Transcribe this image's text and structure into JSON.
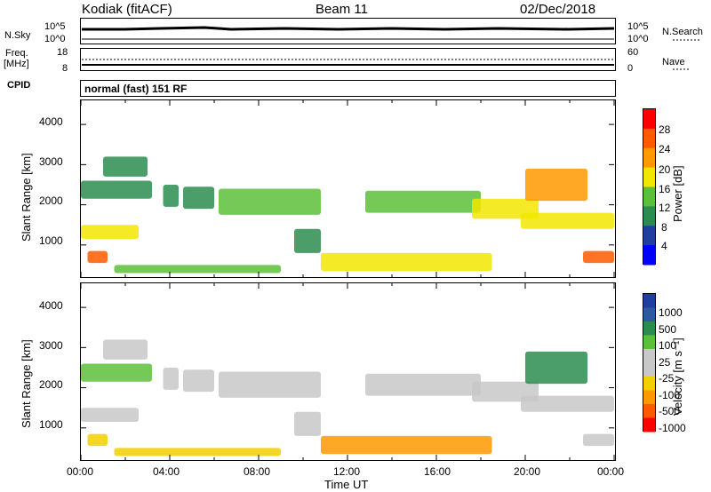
{
  "header": {
    "station": "Kodiak (fitACF)",
    "beam": "Beam 11",
    "date": "02/Dec/2018"
  },
  "noise_panel": {
    "left_label": "N.Sky",
    "left_top": "10^5",
    "left_bottom": "10^0",
    "right_top": "10^5",
    "right_bottom": "10^0",
    "right_label": "N.Search"
  },
  "freq_panel": {
    "label_line1": "Freq.",
    "label_line2": "[MHz]",
    "left_top": "18",
    "left_bottom": "8",
    "right_top": "60",
    "right_bottom": "0",
    "right_label": "Nave"
  },
  "cpid_panel": {
    "label": "CPID",
    "text": "normal (fast) 151 RF"
  },
  "y_axis": {
    "label": "Slant Range [km]",
    "ticks": [
      "1000",
      "2000",
      "3000",
      "4000"
    ]
  },
  "x_axis": {
    "label": "Time UT",
    "ticks": [
      "00:00",
      "04:00",
      "08:00",
      "12:00",
      "16:00",
      "20:00",
      "00:00"
    ]
  },
  "colors": {
    "power_scale": [
      "#0000ff",
      "#1f3f9f",
      "#2c8c50",
      "#5cbf3a",
      "#f2e600",
      "#ff9900",
      "#ff5a00",
      "#ff0000"
    ],
    "velocity_scale": [
      "#ff0000",
      "#ff5a00",
      "#ff9900",
      "#f2d000",
      "#c8c8c8",
      "#c8c8c8",
      "#5cbf3a",
      "#2c8c50",
      "#2c5aa0",
      "#1f3f9f"
    ]
  },
  "chart_data": [
    {
      "type": "heatmap",
      "title": "",
      "xlabel": "Time UT",
      "ylabel": "Slant Range [km]",
      "xlim": [
        "00:00",
        "24:00"
      ],
      "ylim": [
        200,
        4600
      ],
      "colorbar": {
        "label": "Power [dB]",
        "ticks": [
          "4",
          "8",
          "12",
          "16",
          "20",
          "24",
          "28"
        ]
      },
      "bands": [
        {
          "t": [
            0.0,
            2.6
          ],
          "range": [
            1150,
            1500
          ],
          "value": 20
        },
        {
          "t": [
            0.0,
            3.2
          ],
          "range": [
            2150,
            2600
          ],
          "value": 12
        },
        {
          "t": [
            0.3,
            1.2
          ],
          "range": [
            550,
            850
          ],
          "value": 26
        },
        {
          "t": [
            1.0,
            3.0
          ],
          "range": [
            2700,
            3200
          ],
          "value": 10
        },
        {
          "t": [
            1.5,
            9.0
          ],
          "range": [
            300,
            500
          ],
          "value": 16
        },
        {
          "t": [
            3.7,
            4.4
          ],
          "range": [
            1950,
            2500
          ],
          "value": 12
        },
        {
          "t": [
            4.6,
            6.0
          ],
          "range": [
            1900,
            2450
          ],
          "value": 12
        },
        {
          "t": [
            6.2,
            10.8
          ],
          "range": [
            1750,
            2400
          ],
          "value": 16
        },
        {
          "t": [
            9.6,
            10.8
          ],
          "range": [
            800,
            1400
          ],
          "value": 12
        },
        {
          "t": [
            10.8,
            18.5
          ],
          "range": [
            350,
            800
          ],
          "value": 18
        },
        {
          "t": [
            12.8,
            18.0
          ],
          "range": [
            1800,
            2350
          ],
          "value": 16
        },
        {
          "t": [
            17.6,
            20.6
          ],
          "range": [
            1650,
            2150
          ],
          "value": 18
        },
        {
          "t": [
            19.8,
            24.0
          ],
          "range": [
            1400,
            1800
          ],
          "value": 18
        },
        {
          "t": [
            20.0,
            22.8
          ],
          "range": [
            2100,
            2900
          ],
          "value": 24
        },
        {
          "t": [
            22.6,
            24.0
          ],
          "range": [
            550,
            850
          ],
          "value": 26
        }
      ]
    },
    {
      "type": "heatmap",
      "title": "",
      "xlabel": "Time UT",
      "ylabel": "Slant Range [km]",
      "xlim": [
        "00:00",
        "24:00"
      ],
      "ylim": [
        200,
        4600
      ],
      "colorbar": {
        "label": "Velocity [m s⁻¹]",
        "ticks": [
          "1000",
          "500",
          "100",
          "25",
          "-25",
          "-100",
          "-500",
          "-1000"
        ]
      },
      "bands": [
        {
          "t": [
            0.0,
            2.6
          ],
          "range": [
            1150,
            1500
          ],
          "value": 0
        },
        {
          "t": [
            0.0,
            3.2
          ],
          "range": [
            2150,
            2600
          ],
          "value": 50
        },
        {
          "t": [
            0.3,
            1.2
          ],
          "range": [
            550,
            850
          ],
          "value": -25
        },
        {
          "t": [
            1.0,
            3.0
          ],
          "range": [
            2700,
            3200
          ],
          "value": 0
        },
        {
          "t": [
            1.5,
            9.0
          ],
          "range": [
            300,
            500
          ],
          "value": -60
        },
        {
          "t": [
            3.7,
            4.4
          ],
          "range": [
            1950,
            2500
          ],
          "value": 0
        },
        {
          "t": [
            4.6,
            6.0
          ],
          "range": [
            1900,
            2450
          ],
          "value": 0
        },
        {
          "t": [
            6.2,
            10.8
          ],
          "range": [
            1750,
            2400
          ],
          "value": 0
        },
        {
          "t": [
            9.6,
            10.8
          ],
          "range": [
            800,
            1400
          ],
          "value": 0
        },
        {
          "t": [
            10.8,
            18.5
          ],
          "range": [
            350,
            800
          ],
          "value": -150
        },
        {
          "t": [
            12.8,
            18.0
          ],
          "range": [
            1800,
            2350
          ],
          "value": 0
        },
        {
          "t": [
            17.6,
            20.6
          ],
          "range": [
            1650,
            2150
          ],
          "value": 0
        },
        {
          "t": [
            19.8,
            24.0
          ],
          "range": [
            1400,
            1800
          ],
          "value": 0
        },
        {
          "t": [
            20.0,
            22.8
          ],
          "range": [
            2100,
            2900
          ],
          "value": 300
        },
        {
          "t": [
            22.6,
            24.0
          ],
          "range": [
            550,
            850
          ],
          "value": 0
        }
      ]
    }
  ]
}
